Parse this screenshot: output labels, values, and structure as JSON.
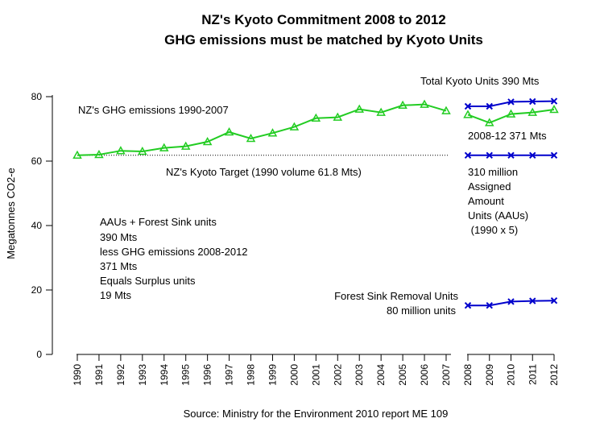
{
  "chart_data": {
    "type": "line",
    "title": "NZ's Kyoto Commitment 2008 to 2012",
    "subtitle": "GHG emissions must be matched by Kyoto Units",
    "ylabel": "Megatonnes CO2-e",
    "ylim": [
      0,
      80
    ],
    "yticks": [
      0,
      20,
      40,
      60,
      80
    ],
    "xticks": [
      "1990",
      "1991",
      "1992",
      "1993",
      "1994",
      "1995",
      "1996",
      "1997",
      "1998",
      "1999",
      "2000",
      "2001",
      "2002",
      "2003",
      "2004",
      "2005",
      "2006",
      "2007",
      "2008",
      "2009",
      "2010",
      "2011",
      "2012"
    ],
    "grid": false,
    "source": "Source: Ministry for the Environment 2010 report ME 109",
    "series": [
      {
        "color": "#22cc22",
        "marker": "triangle",
        "x": [
          1990,
          1991,
          1992,
          1993,
          1994,
          1995,
          1996,
          1997,
          1998,
          1999,
          2000,
          2001,
          2002,
          2003,
          2004,
          2005,
          2006,
          2007
        ],
        "values": [
          61.8,
          62.0,
          63.2,
          63.0,
          64.1,
          64.6,
          66.0,
          69.0,
          67.0,
          68.7,
          70.6,
          73.3,
          73.6,
          76.1,
          75.1,
          77.3,
          77.6,
          75.6
        ]
      },
      {
        "color": "#22cc22",
        "marker": "triangle",
        "x": [
          2008,
          2009,
          2010,
          2011,
          2012
        ],
        "values": [
          74.4,
          71.9,
          74.6,
          75.1,
          76.0
        ]
      },
      {
        "color": "#0000cc",
        "marker": "x",
        "x": [
          2008,
          2009,
          2010,
          2011,
          2012
        ],
        "values": [
          77.0,
          77.0,
          78.4,
          78.5,
          78.6
        ]
      },
      {
        "color": "#0000cc",
        "marker": "x",
        "x": [
          2008,
          2009,
          2010,
          2011,
          2012
        ],
        "values": [
          61.8,
          61.8,
          61.8,
          61.8,
          61.8
        ]
      },
      {
        "color": "#0000cc",
        "marker": "x",
        "x": [
          2008,
          2009,
          2010,
          2011,
          2012
        ],
        "values": [
          15.2,
          15.2,
          16.4,
          16.6,
          16.7
        ]
      }
    ],
    "reference_line": {
      "value": 61.8,
      "style": "dotted",
      "label": "NZ's Kyoto Target (1990 volume 61.8 Mts)"
    },
    "annotations": {
      "ghg_label": "NZ's GHG emissions 1990-2007",
      "total_units": "Total Kyoto Units 390 Mts",
      "period_emissions": "2008-12 371 Mts",
      "aau_lines": [
        "310 million",
        "Assigned",
        "Amount",
        "Units (AAUs)",
        " (1990 x 5)"
      ],
      "surplus_lines": [
        "AAUs + Forest Sink units",
        "390 Mts",
        "less GHG emissions 2008-2012",
        "371 Mts",
        "Equals Surplus units",
        "19 Mts"
      ],
      "forest_line1": "Forest Sink Removal Units",
      "forest_line2": "80 million units"
    }
  }
}
